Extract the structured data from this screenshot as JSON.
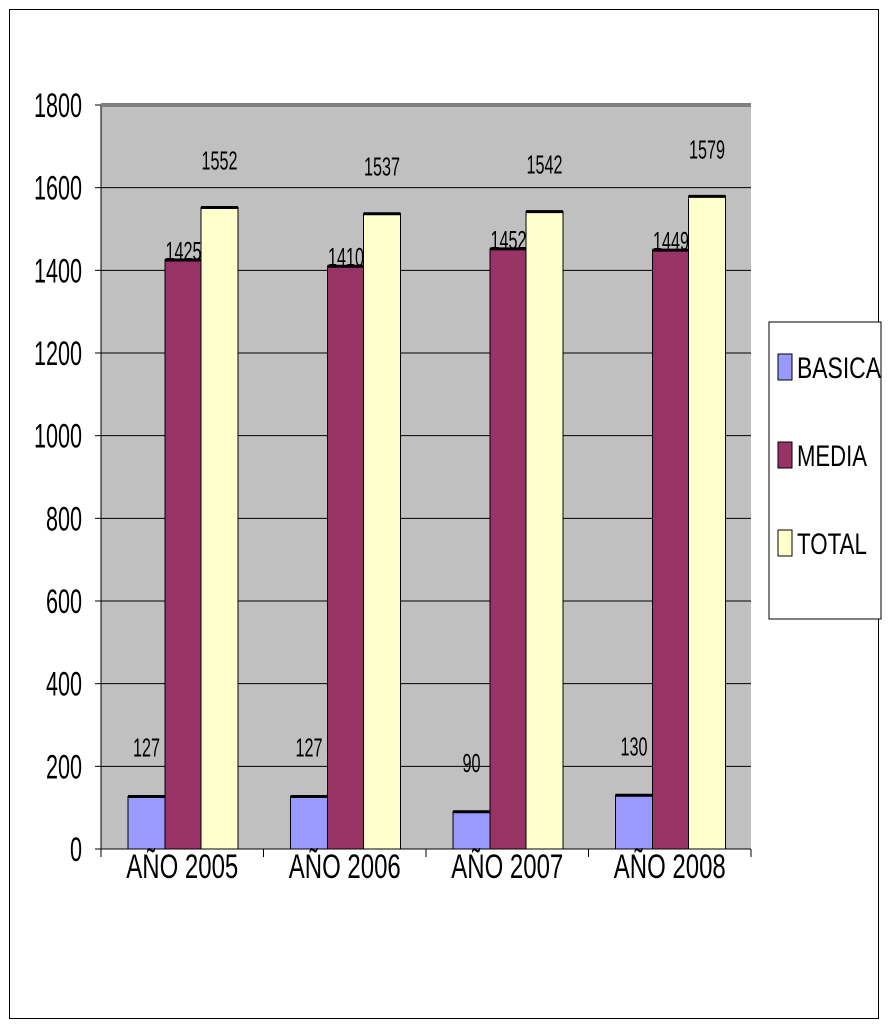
{
  "chart_data": {
    "type": "bar",
    "categories": [
      "AÑO 2005",
      "AÑO 2006",
      "AÑO 2007",
      "AÑO 2008"
    ],
    "series": [
      {
        "name": "BASICA",
        "values": [
          127,
          127,
          90,
          130
        ],
        "color": "#9999ff"
      },
      {
        "name": "MEDIA",
        "values": [
          1425,
          1410,
          1452,
          1449
        ],
        "color": "#993366"
      },
      {
        "name": "TOTAL",
        "values": [
          1552,
          1537,
          1542,
          1579
        ],
        "color": "#ffffcc"
      }
    ],
    "ylim": [
      0,
      1800
    ],
    "yticks": [
      0,
      200,
      400,
      600,
      800,
      1000,
      1200,
      1400,
      1600,
      1800
    ],
    "grid": true,
    "plot_background": "#c0c0c0",
    "legend_position": "right",
    "data_labels": true
  }
}
